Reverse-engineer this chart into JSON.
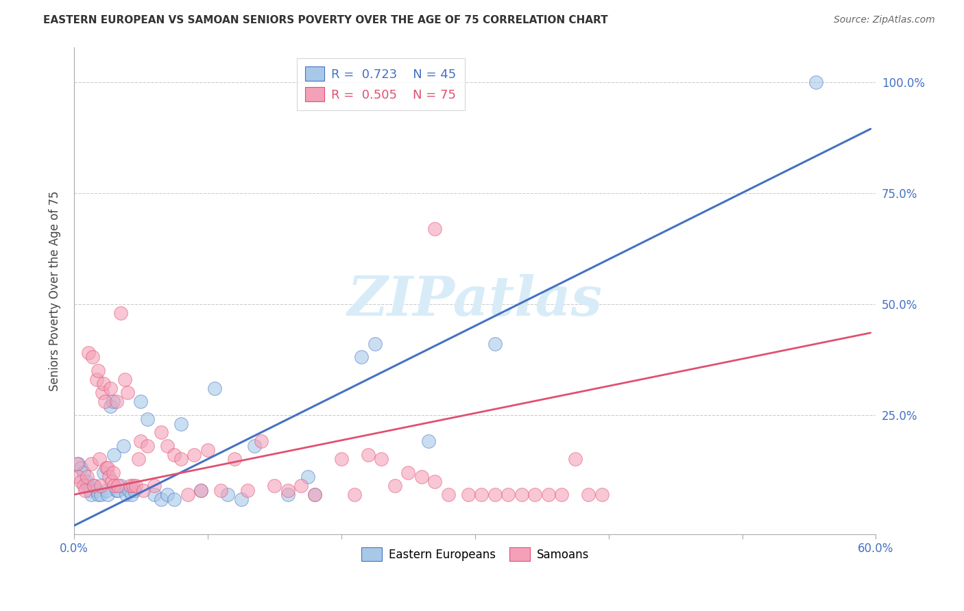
{
  "title": "EASTERN EUROPEAN VS SAMOAN SENIORS POVERTY OVER THE AGE OF 75 CORRELATION CHART",
  "source": "Source: ZipAtlas.com",
  "ylabel": "Seniors Poverty Over the Age of 75",
  "xlim": [
    0.0,
    0.6
  ],
  "ylim": [
    -0.02,
    1.08
  ],
  "yticks": [
    0.0,
    0.25,
    0.5,
    0.75,
    1.0
  ],
  "ytick_labels_right": [
    "",
    "25.0%",
    "50.0%",
    "75.0%",
    "100.0%"
  ],
  "xtick_labels": [
    "0.0%",
    "",
    "",
    "",
    "",
    "",
    "60.0%"
  ],
  "blue_color": "#A8C8E8",
  "pink_color": "#F4A0B8",
  "trendline_blue": "#4472C4",
  "trendline_pink": "#E05070",
  "watermark_color": "#D8ECF8",
  "blue_points": [
    [
      0.003,
      0.14
    ],
    [
      0.005,
      0.13
    ],
    [
      0.007,
      0.12
    ],
    [
      0.009,
      0.1
    ],
    [
      0.01,
      0.09
    ],
    [
      0.012,
      0.08
    ],
    [
      0.013,
      0.07
    ],
    [
      0.015,
      0.09
    ],
    [
      0.017,
      0.08
    ],
    [
      0.018,
      0.07
    ],
    [
      0.02,
      0.07
    ],
    [
      0.022,
      0.12
    ],
    [
      0.024,
      0.08
    ],
    [
      0.025,
      0.07
    ],
    [
      0.027,
      0.27
    ],
    [
      0.029,
      0.28
    ],
    [
      0.03,
      0.16
    ],
    [
      0.032,
      0.08
    ],
    [
      0.033,
      0.08
    ],
    [
      0.035,
      0.09
    ],
    [
      0.037,
      0.18
    ],
    [
      0.039,
      0.07
    ],
    [
      0.041,
      0.08
    ],
    [
      0.043,
      0.07
    ],
    [
      0.045,
      0.08
    ],
    [
      0.05,
      0.28
    ],
    [
      0.055,
      0.24
    ],
    [
      0.06,
      0.07
    ],
    [
      0.065,
      0.06
    ],
    [
      0.07,
      0.07
    ],
    [
      0.075,
      0.06
    ],
    [
      0.08,
      0.23
    ],
    [
      0.095,
      0.08
    ],
    [
      0.105,
      0.31
    ],
    [
      0.115,
      0.07
    ],
    [
      0.125,
      0.06
    ],
    [
      0.135,
      0.18
    ],
    [
      0.16,
      0.07
    ],
    [
      0.175,
      0.11
    ],
    [
      0.18,
      0.07
    ],
    [
      0.215,
      0.38
    ],
    [
      0.225,
      0.41
    ],
    [
      0.265,
      0.19
    ],
    [
      0.315,
      0.41
    ],
    [
      0.555,
      1.0
    ]
  ],
  "pink_points": [
    [
      0.002,
      0.14
    ],
    [
      0.003,
      0.11
    ],
    [
      0.005,
      0.1
    ],
    [
      0.007,
      0.09
    ],
    [
      0.008,
      0.08
    ],
    [
      0.01,
      0.11
    ],
    [
      0.011,
      0.39
    ],
    [
      0.013,
      0.14
    ],
    [
      0.014,
      0.38
    ],
    [
      0.015,
      0.09
    ],
    [
      0.017,
      0.33
    ],
    [
      0.018,
      0.35
    ],
    [
      0.019,
      0.15
    ],
    [
      0.02,
      0.09
    ],
    [
      0.021,
      0.3
    ],
    [
      0.022,
      0.32
    ],
    [
      0.023,
      0.28
    ],
    [
      0.024,
      0.13
    ],
    [
      0.025,
      0.13
    ],
    [
      0.026,
      0.11
    ],
    [
      0.027,
      0.31
    ],
    [
      0.028,
      0.1
    ],
    [
      0.029,
      0.12
    ],
    [
      0.03,
      0.09
    ],
    [
      0.032,
      0.28
    ],
    [
      0.033,
      0.09
    ],
    [
      0.035,
      0.48
    ],
    [
      0.038,
      0.33
    ],
    [
      0.04,
      0.3
    ],
    [
      0.042,
      0.09
    ],
    [
      0.044,
      0.09
    ],
    [
      0.046,
      0.09
    ],
    [
      0.048,
      0.15
    ],
    [
      0.05,
      0.19
    ],
    [
      0.052,
      0.08
    ],
    [
      0.055,
      0.18
    ],
    [
      0.06,
      0.09
    ],
    [
      0.065,
      0.21
    ],
    [
      0.07,
      0.18
    ],
    [
      0.075,
      0.16
    ],
    [
      0.08,
      0.15
    ],
    [
      0.085,
      0.07
    ],
    [
      0.09,
      0.16
    ],
    [
      0.095,
      0.08
    ],
    [
      0.1,
      0.17
    ],
    [
      0.11,
      0.08
    ],
    [
      0.12,
      0.15
    ],
    [
      0.13,
      0.08
    ],
    [
      0.14,
      0.19
    ],
    [
      0.15,
      0.09
    ],
    [
      0.16,
      0.08
    ],
    [
      0.17,
      0.09
    ],
    [
      0.18,
      0.07
    ],
    [
      0.2,
      0.15
    ],
    [
      0.21,
      0.07
    ],
    [
      0.22,
      0.16
    ],
    [
      0.23,
      0.15
    ],
    [
      0.24,
      0.09
    ],
    [
      0.25,
      0.12
    ],
    [
      0.26,
      0.11
    ],
    [
      0.27,
      0.1
    ],
    [
      0.28,
      0.07
    ],
    [
      0.295,
      0.07
    ],
    [
      0.305,
      0.07
    ],
    [
      0.315,
      0.07
    ],
    [
      0.325,
      0.07
    ],
    [
      0.335,
      0.07
    ],
    [
      0.345,
      0.07
    ],
    [
      0.355,
      0.07
    ],
    [
      0.365,
      0.07
    ],
    [
      0.375,
      0.15
    ],
    [
      0.385,
      0.07
    ],
    [
      0.395,
      0.07
    ],
    [
      0.27,
      0.67
    ]
  ],
  "blue_trendline_x": [
    0.0,
    0.596
  ],
  "blue_trendline_y": [
    0.0,
    0.895
  ],
  "pink_trendline_x": [
    0.0,
    0.596
  ],
  "pink_trendline_y": [
    0.07,
    0.435
  ]
}
